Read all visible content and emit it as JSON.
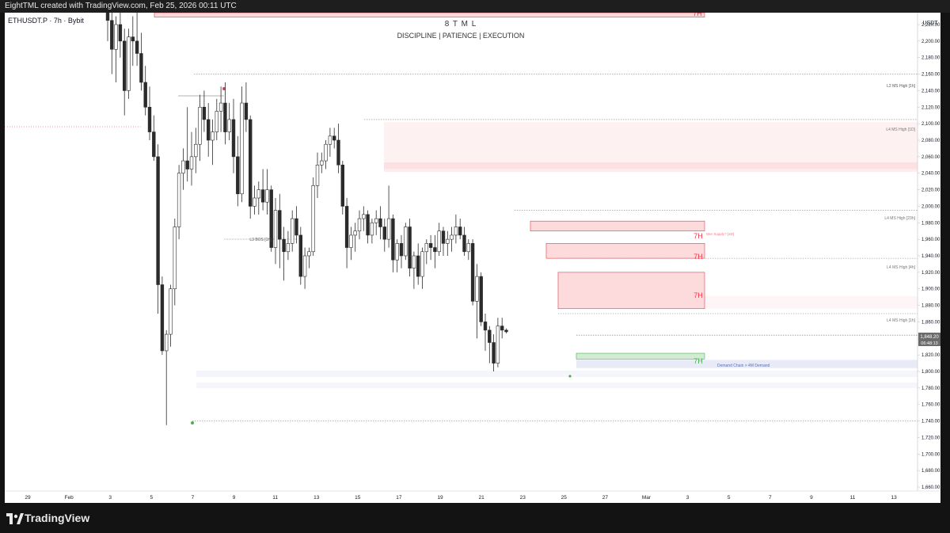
{
  "header": {
    "caption": "EightTML created with TradingView.com, Feb 25, 2026 00:11 UTC"
  },
  "legend": {
    "symbol": "ETHUSDT.P · 7h · Bybit"
  },
  "watermark": {
    "title": "8 T M L",
    "subtitle": "DISCIPLINE | PATIENCE | EXECUTION"
  },
  "price_axis": {
    "currency": "USDT",
    "ticks": [
      "2,220.00",
      "2,200.00",
      "2,180.00",
      "2,160.00",
      "2,140.00",
      "2,120.00",
      "2,100.00",
      "2,080.00",
      "2,060.00",
      "2,040.00",
      "2,020.00",
      "2,000.00",
      "1,980.00",
      "1,960.00",
      "1,940.00",
      "1,920.00",
      "1,900.00",
      "1,880.00",
      "1,860.00",
      "1,840.00",
      "1,820.00",
      "1,800.00",
      "1,780.00",
      "1,760.00",
      "1,740.00",
      "1,720.00",
      "1,700.00",
      "1,680.00",
      "1,660.00"
    ],
    "current_price": "1,848.20",
    "countdown": "06:48:13"
  },
  "time_axis": {
    "labels": [
      "29",
      "Feb",
      "3",
      "5",
      "7",
      "9",
      "11",
      "13",
      "15",
      "17",
      "19",
      "21",
      "23",
      "25",
      "27",
      "Mar",
      "3",
      "5",
      "7",
      "9",
      "11",
      "13"
    ]
  },
  "annotations": {
    "l2_ms_high": "L2 MS High [1h]",
    "l4_ms_high_1d": "L4 MS High [1D]",
    "l4_ms_high_23h": "L4 MS High [23h]",
    "l4_ms_high_4h": "L4 MS High [4h]",
    "l4_ms_high_1h": "L4 MS High [1h]",
    "l3_bos": "L3 BOS [1h]",
    "supply_label": "Wer Supply? [4D]",
    "demand_label": "Demand Chain > 4M Demand",
    "zone_7h_a": "7H",
    "zone_7h_b": "7H",
    "zone_7h_c": "7H",
    "zone_7h_d": "7H",
    "zone_7h_top": "7H"
  },
  "branding": {
    "name": "TradingView"
  },
  "colors": {
    "up": "#ffffff",
    "down": "#2b2b2b",
    "supply": "#f23645",
    "demand": "#4caf50",
    "background": "#ffffff"
  },
  "chart_data": {
    "type": "candlestick",
    "symbol": "ETHUSDT.P",
    "timeframe": "7h",
    "ylim": [
      1645,
      2240
    ],
    "levels": [
      2160,
      2105,
      1995,
      1937,
      1870,
      1844,
      1740
    ],
    "zones": [
      {
        "kind": "supply",
        "low": 2229,
        "high": 2260,
        "label": "7H"
      },
      {
        "kind": "supply",
        "low": 2045,
        "high": 2102
      },
      {
        "kind": "supply",
        "low": 1970,
        "high": 1982,
        "label": "7H"
      },
      {
        "kind": "supply",
        "low": 1937,
        "high": 1955,
        "label": "7H"
      },
      {
        "kind": "supply",
        "low": 1876,
        "high": 1920,
        "label": "7H"
      },
      {
        "kind": "demand",
        "low": 1815,
        "high": 1822,
        "label": "7H"
      },
      {
        "kind": "demand",
        "low": 1804,
        "high": 1814
      }
    ],
    "ohlc": [
      [
        2240,
        2245,
        2200,
        2225
      ],
      [
        2225,
        2240,
        2160,
        2190
      ],
      [
        2190,
        2230,
        2150,
        2220
      ],
      [
        2220,
        2235,
        2180,
        2200
      ],
      [
        2200,
        2215,
        2110,
        2140
      ],
      [
        2140,
        2215,
        2130,
        2205
      ],
      [
        2205,
        2230,
        2170,
        2200
      ],
      [
        2200,
        2240,
        2170,
        2185
      ],
      [
        2185,
        2210,
        2140,
        2150
      ],
      [
        2150,
        2170,
        2110,
        2120
      ],
      [
        2120,
        2145,
        2080,
        2090
      ],
      [
        2090,
        2110,
        2055,
        2060
      ],
      [
        2060,
        2075,
        1870,
        1905
      ],
      [
        1905,
        1915,
        1820,
        1825
      ],
      [
        1825,
        1850,
        1735,
        1845
      ],
      [
        1845,
        1905,
        1830,
        1900
      ],
      [
        1900,
        1985,
        1880,
        1975
      ],
      [
        1975,
        2050,
        1960,
        2040
      ],
      [
        2040,
        2070,
        2020,
        2055
      ],
      [
        2055,
        2120,
        2030,
        2045
      ],
      [
        2045,
        2090,
        2025,
        2060
      ],
      [
        2060,
        2095,
        2040,
        2075
      ],
      [
        2075,
        2135,
        2055,
        2120
      ],
      [
        2120,
        2140,
        2090,
        2105
      ],
      [
        2105,
        2125,
        2060,
        2080
      ],
      [
        2080,
        2105,
        2050,
        2090
      ],
      [
        2090,
        2130,
        2080,
        2115
      ],
      [
        2115,
        2145,
        2090,
        2125
      ],
      [
        2125,
        2150,
        2075,
        2090
      ],
      [
        2090,
        2125,
        2080,
        2105
      ],
      [
        2105,
        2130,
        2040,
        2060
      ],
      [
        2060,
        2085,
        2000,
        2015
      ],
      [
        2015,
        2145,
        2005,
        2125
      ],
      [
        2125,
        2150,
        2090,
        2105
      ],
      [
        2105,
        2110,
        1985,
        2000
      ],
      [
        2000,
        2025,
        1990,
        2010
      ],
      [
        2010,
        2030,
        1990,
        2020
      ],
      [
        2020,
        2045,
        1995,
        2005
      ],
      [
        2005,
        2045,
        1990,
        2020
      ],
      [
        2020,
        2025,
        1945,
        1950
      ],
      [
        1950,
        2010,
        1930,
        1995
      ],
      [
        1995,
        2015,
        1925,
        1960
      ],
      [
        1960,
        1975,
        1910,
        1945
      ],
      [
        1945,
        1970,
        1935,
        1955
      ],
      [
        1955,
        1995,
        1945,
        1985
      ],
      [
        1985,
        2000,
        1955,
        1965
      ],
      [
        1965,
        1975,
        1905,
        1915
      ],
      [
        1915,
        1950,
        1900,
        1940
      ],
      [
        1940,
        1950,
        1925,
        1945
      ],
      [
        1945,
        2035,
        1940,
        2025
      ],
      [
        2025,
        2065,
        2010,
        2050
      ],
      [
        2050,
        2065,
        2040,
        2055
      ],
      [
        2055,
        2080,
        2045,
        2075
      ],
      [
        2075,
        2095,
        2060,
        2085
      ],
      [
        2085,
        2095,
        2070,
        2080
      ],
      [
        2080,
        2100,
        2040,
        2050
      ],
      [
        2050,
        2055,
        1990,
        2000
      ],
      [
        2000,
        2010,
        1925,
        1950
      ],
      [
        1950,
        1975,
        1935,
        1965
      ],
      [
        1965,
        1980,
        1945,
        1970
      ],
      [
        1970,
        1995,
        1960,
        1985
      ],
      [
        1985,
        2000,
        1970,
        1990
      ],
      [
        1990,
        1995,
        1955,
        1965
      ],
      [
        1965,
        1985,
        1955,
        1980
      ],
      [
        1980,
        1995,
        1965,
        1985
      ],
      [
        1985,
        2000,
        1960,
        1975
      ],
      [
        1975,
        1985,
        1945,
        1960
      ],
      [
        1960,
        2025,
        1950,
        1985
      ],
      [
        1985,
        1990,
        1920,
        1935
      ],
      [
        1935,
        1960,
        1920,
        1955
      ],
      [
        1955,
        1965,
        1925,
        1940
      ],
      [
        1940,
        1980,
        1935,
        1975
      ],
      [
        1975,
        1985,
        1915,
        1925
      ],
      [
        1925,
        1945,
        1900,
        1940
      ],
      [
        1940,
        1955,
        1905,
        1915
      ],
      [
        1915,
        1950,
        1900,
        1945
      ],
      [
        1945,
        1960,
        1930,
        1955
      ],
      [
        1955,
        1965,
        1935,
        1950
      ],
      [
        1950,
        1965,
        1925,
        1945
      ],
      [
        1945,
        1980,
        1940,
        1970
      ],
      [
        1970,
        1975,
        1940,
        1955
      ],
      [
        1955,
        1970,
        1940,
        1960
      ],
      [
        1960,
        1975,
        1945,
        1965
      ],
      [
        1965,
        1990,
        1955,
        1975
      ],
      [
        1975,
        1985,
        1960,
        1965
      ],
      [
        1965,
        1975,
        1940,
        1945
      ],
      [
        1945,
        1960,
        1935,
        1955
      ],
      [
        1955,
        1960,
        1880,
        1885
      ],
      [
        1885,
        1930,
        1840,
        1915
      ],
      [
        1915,
        1920,
        1855,
        1860
      ],
      [
        1860,
        1870,
        1825,
        1850
      ],
      [
        1850,
        1855,
        1810,
        1835
      ],
      [
        1835,
        1845,
        1800,
        1810
      ],
      [
        1810,
        1865,
        1805,
        1855
      ],
      [
        1855,
        1865,
        1840,
        1850
      ],
      [
        1850,
        1852,
        1846,
        1848
      ]
    ]
  }
}
